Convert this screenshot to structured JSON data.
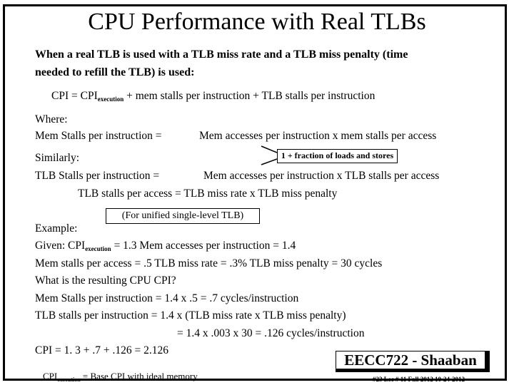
{
  "title": "CPU Performance with Real TLBs",
  "intro": {
    "line1": "When a real TLB is used with a TLB miss rate and a TLB miss penalty (time",
    "line2": "needed to refill the TLB) is used:"
  },
  "cpi_formula": {
    "prefix": "CPI =  CPI",
    "sub": "execution",
    "suffix": "  +  mem stalls per instruction  +  TLB stalls per instruction"
  },
  "where_label": "Where:",
  "mem_stalls_line": {
    "left": "Mem Stalls per instruction  =",
    "right": "Mem accesses per instruction  x  mem stalls per access"
  },
  "callout_loads": "1 + fraction of loads and stores",
  "similarly_label": "Similarly:",
  "tlb_stalls_line": {
    "left": "TLB  Stalls per instruction  =",
    "right": "Mem accesses per instruction  x  TLB stalls per access"
  },
  "tlb_stalls_access": "TLB stalls per access =  TLB miss rate  x  TLB miss penalty",
  "callout_unified": "(For unified single-level TLB)",
  "example": {
    "label": "Example:",
    "given_prefix": "Given:   CPI",
    "given_sub": "execution",
    "given_suffix": " =  1.3    Mem accesses per instruction = 1.4",
    "line_stalls": "Mem stalls per access =  .5          TLB miss rate =  .3%   TLB miss penalty =  30 cycles",
    "question": "What is the resulting CPU CPI?",
    "mem_calc": "Mem Stalls per instruction  =  1.4 x  .5  =  .7    cycles/instruction",
    "tlb_calc": "TLB stalls per instruction   =   1.4  x   (TLB miss rate  x  TLB miss penalty)",
    "tlb_calc2": "= 1.4 x .003 x 30  =  .126 cycles/instruction",
    "cpi_result": "CPI  =  1. 3  +  .7  +  .126   =     2.126"
  },
  "footnote": {
    "prefix": "CPI",
    "sub": "execution",
    "suffix": " =  Base CPI with ideal memory"
  },
  "badge": "EECC722 - Shaaban",
  "footer_meta": "#23   Lec # 11   Fall 2012  10-24-2012"
}
